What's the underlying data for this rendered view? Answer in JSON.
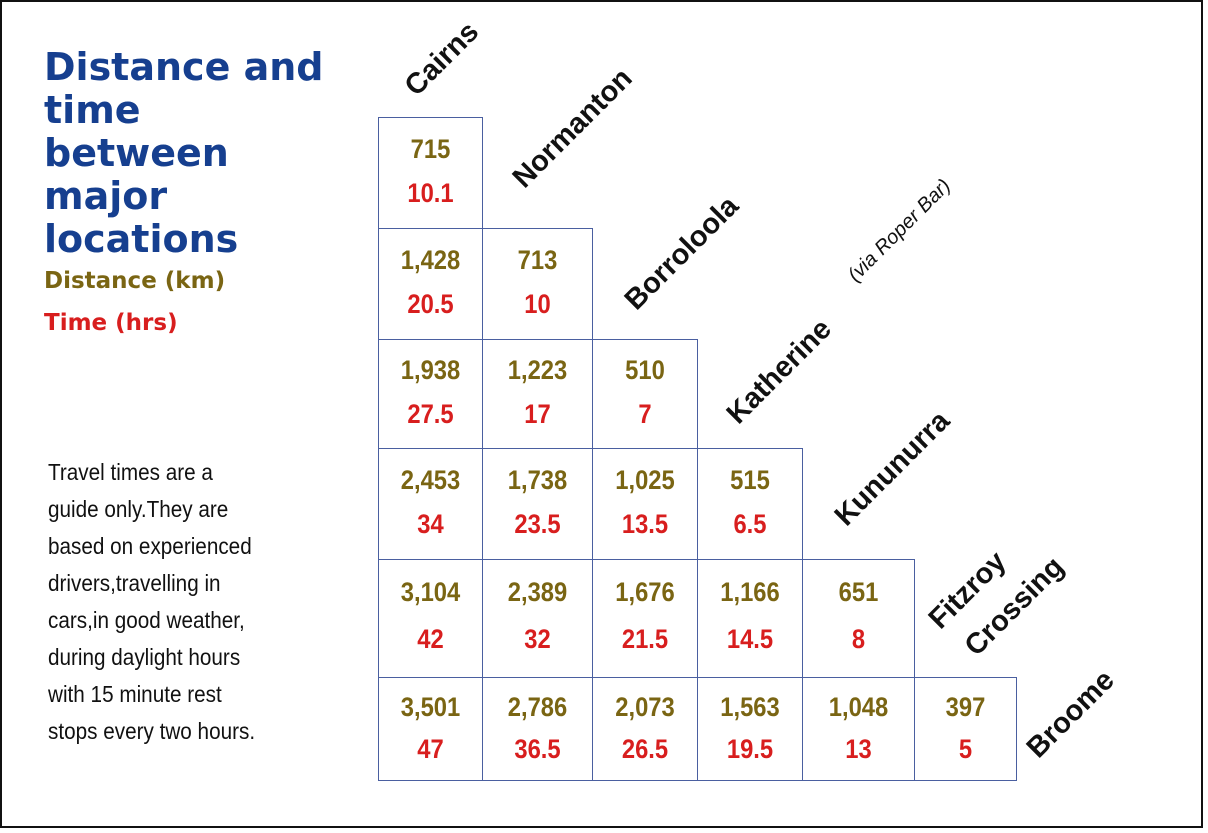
{
  "title_lines": [
    "Distance and",
    "time",
    "between",
    "major",
    "locations"
  ],
  "legend": {
    "distance": "Distance (km)",
    "time": "Time (hrs)"
  },
  "note_lines": [
    "Travel times are a",
    "guide only.They are",
    "based on experienced",
    "drivers,travelling in",
    "cars,in good weather,",
    "during daylight hours",
    "with 15 minute rest",
    "stops every two hours."
  ],
  "locations": [
    "Cairns",
    "Normanton",
    "Borroloola",
    "Katherine",
    "Kununurra",
    "Fitzroy",
    "Crossing",
    "Broome"
  ],
  "katherine_note": "(via Roper Bar)",
  "rows": [
    [
      {
        "d": "715",
        "t": "10.1"
      }
    ],
    [
      {
        "d": "1,428",
        "t": "20.5"
      },
      {
        "d": "713",
        "t": "10"
      }
    ],
    [
      {
        "d": "1,938",
        "t": "27.5"
      },
      {
        "d": "1,223",
        "t": "17"
      },
      {
        "d": "510",
        "t": "7"
      }
    ],
    [
      {
        "d": "2,453",
        "t": "34"
      },
      {
        "d": "1,738",
        "t": "23.5"
      },
      {
        "d": "1,025",
        "t": "13.5"
      },
      {
        "d": "515",
        "t": "6.5"
      }
    ],
    [
      {
        "d": "3,104",
        "t": "42"
      },
      {
        "d": "2,389",
        "t": "32"
      },
      {
        "d": "1,676",
        "t": "21.5"
      },
      {
        "d": "1,166",
        "t": "14.5"
      },
      {
        "d": "651",
        "t": "8"
      }
    ],
    [
      {
        "d": "3,501",
        "t": "47"
      },
      {
        "d": "2,786",
        "t": "36.5"
      },
      {
        "d": "2,073",
        "t": "26.5"
      },
      {
        "d": "1,563",
        "t": "19.5"
      },
      {
        "d": "1,048",
        "t": "13"
      },
      {
        "d": "397",
        "t": "5"
      }
    ]
  ],
  "colors": {
    "title": "#163f8f",
    "distance": "#7a6513",
    "time": "#d81e1e",
    "grid": "#4a5fa0"
  }
}
